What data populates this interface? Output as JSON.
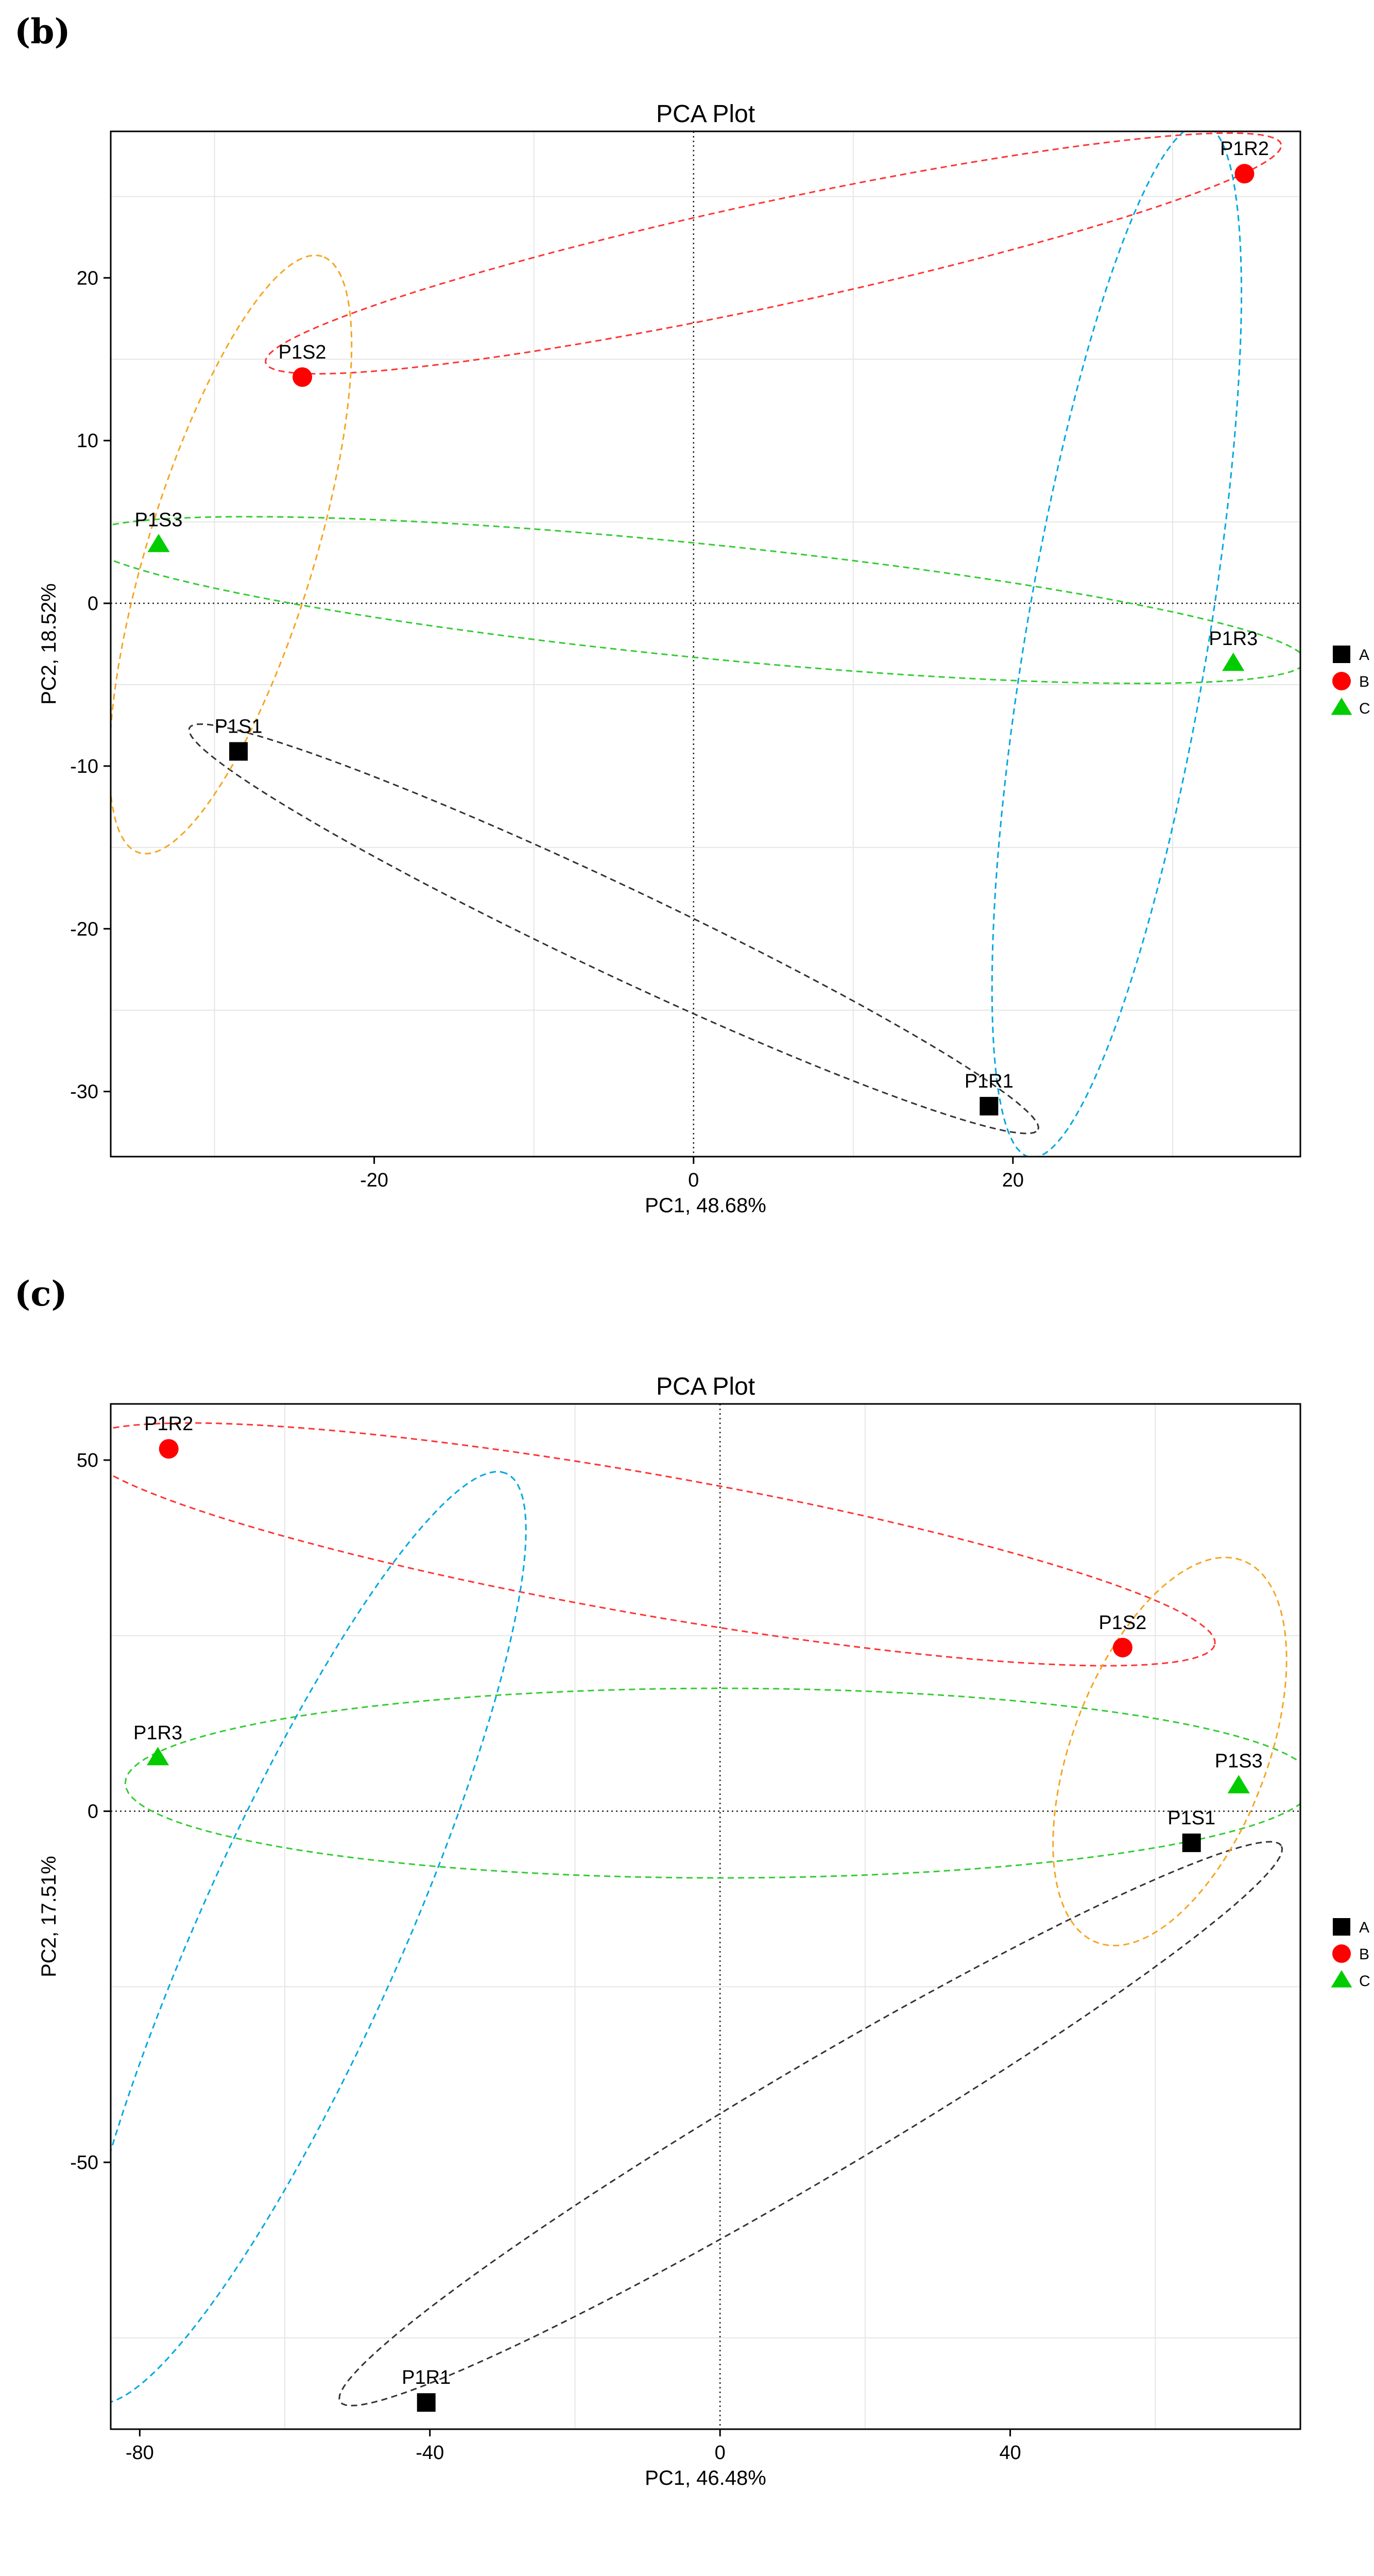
{
  "chart_data": [
    {
      "type": "scatter",
      "panel_label": "(b)",
      "title": "PCA Plot",
      "xlabel": "PC1, 48.68%",
      "ylabel": "PC2, 18.52%",
      "xlim": [
        -36.5,
        38
      ],
      "ylim": [
        -34,
        29
      ],
      "xticks": [
        -20,
        0,
        20
      ],
      "yticks": [
        -30,
        -20,
        -10,
        0,
        10,
        20
      ],
      "minor_x": [
        -30,
        -10,
        10,
        30
      ],
      "minor_y": [
        -25,
        -15,
        -5,
        5,
        15,
        25
      ],
      "points": [
        {
          "label": "P1S1",
          "x": -28.5,
          "y": -9.1,
          "group": "A",
          "shape": "square"
        },
        {
          "label": "P1R1",
          "x": 18.5,
          "y": -30.9,
          "group": "A",
          "shape": "square"
        },
        {
          "label": "P1S2",
          "x": -24.5,
          "y": 13.9,
          "group": "B",
          "shape": "circle"
        },
        {
          "label": "P1R2",
          "x": 34.5,
          "y": 26.4,
          "group": "B",
          "shape": "circle"
        },
        {
          "label": "P1S3",
          "x": -33.5,
          "y": 3.6,
          "group": "C",
          "shape": "triangle"
        },
        {
          "label": "P1R3",
          "x": 33.8,
          "y": -3.7,
          "group": "C",
          "shape": "triangle"
        }
      ],
      "ellipses": [
        {
          "color": "#333333",
          "cx": -5,
          "cy": -20,
          "rx": 29.3,
          "ry": 2.7,
          "angle_deg": -24.9
        },
        {
          "color": "#ff3333",
          "cx": 5,
          "cy": 21.5,
          "rx": 32.5,
          "ry": 3.2,
          "angle_deg": 11.9
        },
        {
          "color": "#33cc33",
          "cx": 0,
          "cy": 0.2,
          "rx": 38.5,
          "ry": 3.5,
          "angle_deg": -5.6
        },
        {
          "color": "#f5a623",
          "cx": -29,
          "cy": 3,
          "rx": 19.2,
          "ry": 5.2,
          "angle_deg": 72.6
        },
        {
          "color": "#00a8e0",
          "cx": 26.5,
          "cy": -2.3,
          "rx": 32.2,
          "ry": 5.7,
          "angle_deg": 80.3
        }
      ],
      "legend": [
        {
          "label": "A",
          "shape": "square",
          "color": "#000000"
        },
        {
          "label": "B",
          "shape": "circle",
          "color": "#ff0000"
        },
        {
          "label": "C",
          "shape": "triangle",
          "color": "#00cc00"
        }
      ],
      "legend_position": "right",
      "grid": "minor-lines"
    },
    {
      "type": "scatter",
      "panel_label": "(c)",
      "title": "PCA Plot",
      "xlabel": "PC1, 46.48%",
      "ylabel": "PC2, 17.51%",
      "xlim": [
        -84,
        80
      ],
      "ylim": [
        -88,
        58
      ],
      "xticks": [
        -80,
        -40,
        0,
        40
      ],
      "yticks": [
        -50,
        0,
        50
      ],
      "minor_x": [
        -60,
        -20,
        20,
        60
      ],
      "minor_y": [
        -75,
        -25,
        25
      ],
      "points": [
        {
          "label": "P1S1",
          "x": 65,
          "y": -4.5,
          "group": "A",
          "shape": "square"
        },
        {
          "label": "P1R1",
          "x": -40.5,
          "y": -84.2,
          "group": "A",
          "shape": "square"
        },
        {
          "label": "P1S2",
          "x": 55.5,
          "y": 23.3,
          "group": "B",
          "shape": "circle"
        },
        {
          "label": "P1R2",
          "x": -76,
          "y": 51.6,
          "group": "B",
          "shape": "circle"
        },
        {
          "label": "P1S3",
          "x": 71.5,
          "y": 3.6,
          "group": "C",
          "shape": "triangle"
        },
        {
          "label": "P1R3",
          "x": -77.5,
          "y": 7.6,
          "group": "C",
          "shape": "triangle"
        }
      ],
      "ellipses": [
        {
          "color": "#333333",
          "cx": 12.5,
          "cy": -44.5,
          "rx": 76,
          "ry": 7.8,
          "angle_deg": 31.4
        },
        {
          "color": "#ff3333",
          "cx": -10,
          "cy": 38,
          "rx": 79.5,
          "ry": 10,
          "angle_deg": -10.3
        },
        {
          "color": "#33cc33",
          "cx": 0,
          "cy": 4,
          "rx": 82,
          "ry": 13.5,
          "angle_deg": 0
        },
        {
          "color": "#f5a623",
          "cx": 62,
          "cy": 8.5,
          "rx": 29,
          "ry": 13.5,
          "angle_deg": 70
        },
        {
          "color": "#00a8e0",
          "cx": -58,
          "cy": -18,
          "rx": 72,
          "ry": 14,
          "angle_deg": 66.7
        }
      ],
      "legend": [
        {
          "label": "A",
          "shape": "square",
          "color": "#000000"
        },
        {
          "label": "B",
          "shape": "circle",
          "color": "#ff0000"
        },
        {
          "label": "C",
          "shape": "triangle",
          "color": "#00cc00"
        }
      ],
      "legend_position": "right",
      "grid": "minor-lines"
    }
  ]
}
